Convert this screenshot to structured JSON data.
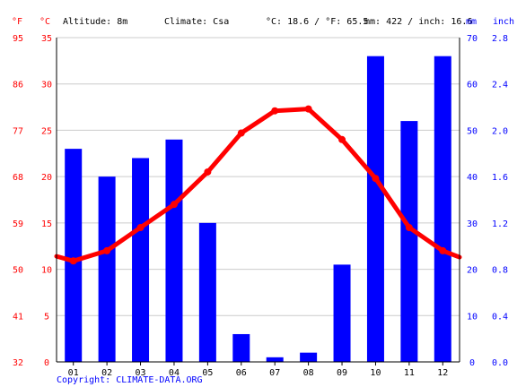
{
  "header": {
    "f_unit": "°F",
    "c_unit": "°C",
    "altitude": "Altitude: 8m",
    "climate": "Climate: Csa",
    "temp_avg": "°C: 18.6 / °F: 65.5",
    "precip_total": "mm: 422 / inch: 16.6",
    "mm_unit": "mm",
    "inch_unit": "inch"
  },
  "copyright": "Copyright: CLIMATE-DATA.ORG",
  "colors": {
    "temperature_line": "#ff0000",
    "precip_bars": "#0000ff",
    "grid": "#cccccc",
    "axis_text_left": "#ff0000",
    "axis_text_right": "#0000ff"
  },
  "chart_data": {
    "type": "bar",
    "categories": [
      "01",
      "02",
      "03",
      "04",
      "05",
      "06",
      "07",
      "08",
      "09",
      "10",
      "11",
      "12"
    ],
    "c_ticks": [
      "0",
      "5",
      "10",
      "15",
      "20",
      "25",
      "30",
      "35"
    ],
    "f_ticks": [
      "32",
      "41",
      "50",
      "59",
      "68",
      "77",
      "86",
      "95"
    ],
    "mm_ticks": [
      "0",
      "10",
      "20",
      "30",
      "40",
      "50",
      "60",
      "70"
    ],
    "inch_ticks": [
      "0.0",
      "0.4",
      "0.8",
      "1.2",
      "1.6",
      "2.0",
      "2.4",
      "2.8"
    ],
    "ylim_c": [
      0,
      35
    ],
    "ylim_mm": [
      0,
      70
    ],
    "grid": true,
    "series": [
      {
        "type": "bar",
        "axis": "mm",
        "values": [
          46,
          40,
          44,
          48,
          30,
          6,
          1,
          2,
          21,
          66,
          52,
          66
        ]
      },
      {
        "type": "line",
        "axis": "c",
        "values": [
          10.9,
          12.0,
          14.5,
          17.0,
          20.5,
          24.7,
          27.1,
          27.3,
          24.0,
          19.8,
          14.5,
          12.0
        ],
        "edge_left": 11.4,
        "edge_right": 11.3
      }
    ]
  }
}
